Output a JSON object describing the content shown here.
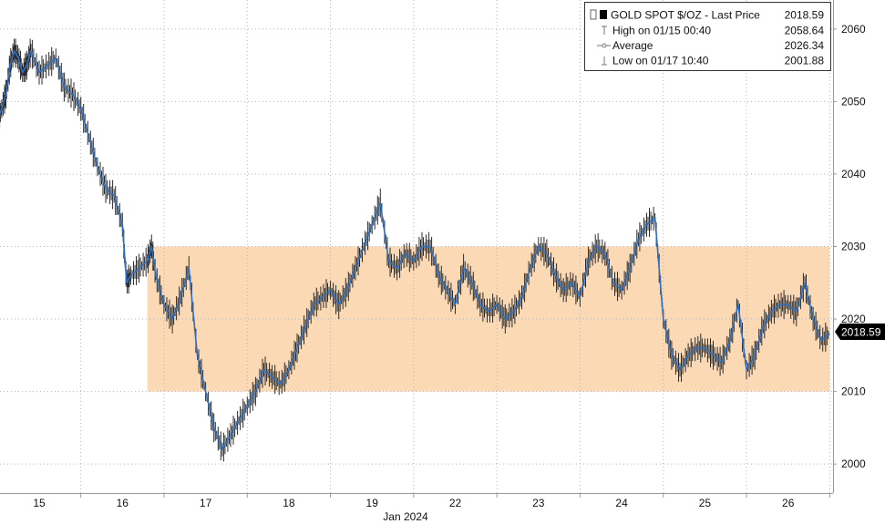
{
  "chart_data": {
    "type": "line",
    "title": "",
    "xlabel": "Jan 2024",
    "ylabel": "",
    "x_tick_labels": [
      "15",
      "16",
      "17",
      "18",
      "19",
      "22",
      "23",
      "24",
      "25",
      "26"
    ],
    "y_tick_labels": [
      "2000",
      "2010",
      "2020",
      "2030",
      "2040",
      "2050",
      "2060"
    ],
    "ylim": [
      1996,
      2064
    ],
    "grid": true,
    "legend_position": "top-right",
    "highlight_band": {
      "y_from": 2010,
      "y_to": 2030,
      "color": "#fbd9b4",
      "x_from_session": 1.8,
      "x_to_session": 10.0
    },
    "colors": {
      "price_line": "#2f6fc0",
      "candle": "#2b2b2b",
      "band": "#fbd9b4",
      "last_label_bg": "#000000"
    },
    "legend": {
      "title": "GOLD SPOT $/OZ - Last Price",
      "title_value": "2018.59",
      "rows": [
        {
          "label": "High on 01/15 00:40",
          "value": "2058.64"
        },
        {
          "label": "Average",
          "value": "2026.34"
        },
        {
          "label": "Low on 01/17 10:40",
          "value": "2001.88"
        }
      ]
    },
    "last_price_label": "2018.59",
    "series": [
      {
        "x": [
          0.0,
          0.05,
          0.1,
          0.15,
          0.2,
          0.25,
          0.3,
          0.35,
          0.4,
          0.5,
          0.6,
          0.7,
          0.8,
          0.9,
          1.0,
          1.1,
          1.2,
          1.3,
          1.4,
          1.5,
          1.55,
          1.6,
          1.7,
          1.8,
          1.85,
          1.9,
          2.0,
          2.1,
          2.2,
          2.3,
          2.4,
          2.5,
          2.6,
          2.7,
          2.8,
          2.9,
          3.0,
          3.1,
          3.2,
          3.3,
          3.4,
          3.5,
          3.6,
          3.7,
          3.8,
          3.9,
          4.0,
          4.1,
          4.2,
          4.3,
          4.4,
          4.5,
          4.6,
          4.7,
          4.8,
          4.9,
          5.0,
          5.1,
          5.2,
          5.3,
          5.4,
          5.5,
          5.6,
          5.7,
          5.8,
          5.9,
          6.0,
          6.1,
          6.2,
          6.3,
          6.4,
          6.5,
          6.6,
          6.7,
          6.8,
          6.9,
          7.0,
          7.1,
          7.2,
          7.3,
          7.4,
          7.5,
          7.6,
          7.7,
          7.8,
          7.9,
          8.0,
          8.1,
          8.2,
          8.3,
          8.4,
          8.5,
          8.6,
          8.7,
          8.8,
          8.9,
          9.0,
          9.1,
          9.2,
          9.3,
          9.4,
          9.5,
          9.6,
          9.7,
          9.8,
          9.9,
          10.0
        ],
        "y": [
          2047.5,
          2049,
          2051,
          2055,
          2057,
          2056,
          2054,
          2055,
          2057,
          2054,
          2055,
          2056,
          2052,
          2051,
          2049,
          2045,
          2041,
          2038,
          2037,
          2033,
          2025,
          2026,
          2027,
          2028,
          2030,
          2026,
          2022,
          2020,
          2023,
          2027,
          2015,
          2010,
          2005,
          2002,
          2004,
          2006,
          2008,
          2010,
          2013,
          2012,
          2011,
          2013,
          2016,
          2019,
          2022,
          2023,
          2024,
          2022,
          2024,
          2027,
          2030,
          2033,
          2036,
          2028,
          2027,
          2029,
          2028,
          2030,
          2030,
          2026,
          2024,
          2022,
          2027,
          2025,
          2022,
          2021,
          2022,
          2020,
          2021,
          2023,
          2027,
          2030,
          2029,
          2026,
          2024,
          2025,
          2023,
          2028,
          2030,
          2029,
          2025,
          2024,
          2027,
          2031,
          2033,
          2034,
          2020,
          2015,
          2013,
          2015,
          2016,
          2016,
          2015,
          2014,
          2017,
          2022,
          2013,
          2015,
          2019,
          2021,
          2022,
          2022,
          2021,
          2025,
          2020,
          2017,
          2018
        ]
      }
    ]
  }
}
